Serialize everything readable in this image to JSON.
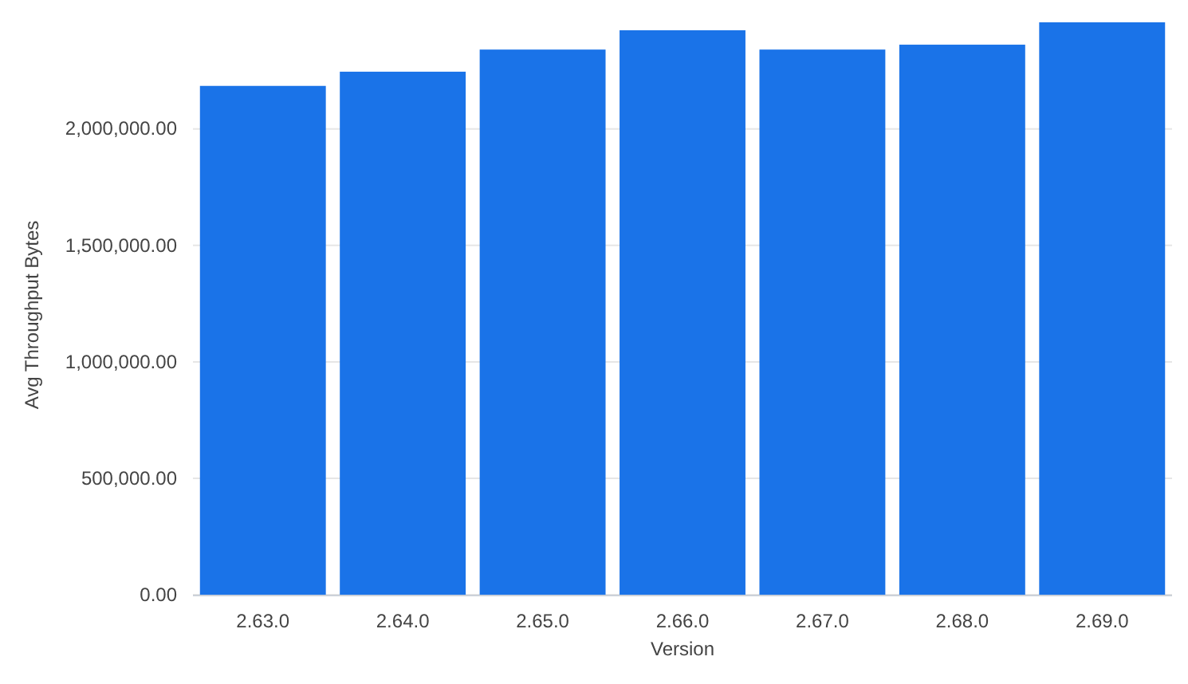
{
  "chart_data": {
    "type": "bar",
    "xlabel": "Version",
    "ylabel": "Avg Throughput Bytes",
    "categories": [
      "2.63.0",
      "2.64.0",
      "2.65.0",
      "2.66.0",
      "2.67.0",
      "2.68.0",
      "2.69.0"
    ],
    "values": [
      2185000,
      2246000,
      2341000,
      2424000,
      2341000,
      2362000,
      2458000
    ],
    "color": "#1a73e8",
    "ylim": [
      0,
      2458000
    ],
    "yticks": [
      {
        "value": 0,
        "label": "0.00"
      },
      {
        "value": 500000,
        "label": "500,000.00"
      },
      {
        "value": 1000000,
        "label": "1,000,000.00"
      },
      {
        "value": 1500000,
        "label": "1,500,000.00"
      },
      {
        "value": 2000000,
        "label": "2,000,000.00"
      }
    ],
    "grid": "y"
  }
}
